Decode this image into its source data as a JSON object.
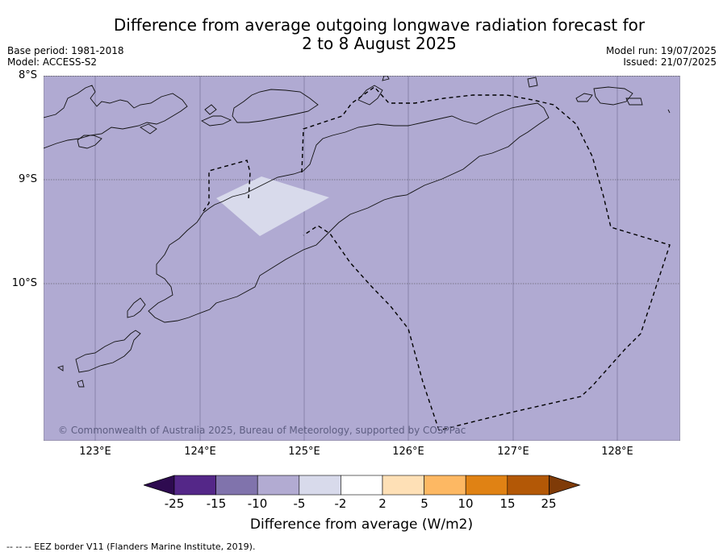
{
  "title_line1": "Difference from average outgoing longwave radiation forecast for",
  "title_line2": "2 to 8 August 2025",
  "base_period": "Base period: 1981-2018",
  "model": "Model: ACCESS-S2",
  "model_run": "Model run: 19/07/2025",
  "issued": "Issued: 21/07/2025",
  "lat_labels": [
    "8°S",
    "9°S",
    "10°S"
  ],
  "lon_labels": [
    "123°E",
    "124°E",
    "125°E",
    "126°E",
    "127°E",
    "128°E"
  ],
  "copyright": "© Commonwealth of Australia 2025, Bureau of Meteorology, supported by COSPPac",
  "colorbar": {
    "ticks": [
      "-25",
      "-15",
      "-10",
      "-5",
      "-2",
      "2",
      "5",
      "10",
      "15",
      "25"
    ],
    "colors": [
      "#2e0b50",
      "#542788",
      "#8073ac",
      "#b2abd2",
      "#d8daeb",
      "#ffffff",
      "#fee0b6",
      "#fdb863",
      "#e08214",
      "#b35806",
      "#7f3b08"
    ],
    "label": "Difference from average (W/m2)"
  },
  "footnote": "--  --  -- EEZ border V11 (Flanders Marine Institute, 2019).",
  "map_data": {
    "background_category": "-10 to -5",
    "background_color": "#b2abd2",
    "patch_category": "-5 to -2",
    "patch_color": "#d8daeb",
    "extent": {
      "lon": [
        122.5,
        128.6
      ],
      "lat": [
        -11.5,
        -8.0
      ]
    }
  }
}
